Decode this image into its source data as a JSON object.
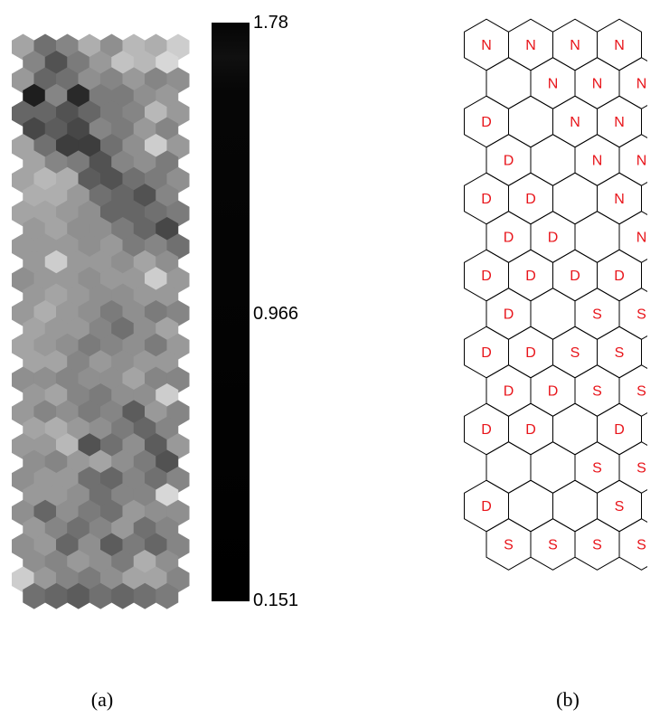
{
  "panel_a": {
    "caption": "(a)",
    "colorbar": {
      "max_label": "1.78",
      "mid_label": "0.966",
      "min_label": "0.151",
      "max": 1.78,
      "min": 0.151
    },
    "grid_rows": [
      [
        0.3,
        0.55,
        0.45,
        0.25,
        0.4,
        0.2,
        0.25,
        0.1
      ],
      [
        0.45,
        0.7,
        0.5,
        0.35,
        0.15,
        0.2,
        0.05
      ],
      [
        0.35,
        0.6,
        0.55,
        0.4,
        0.45,
        0.35,
        0.45,
        0.4
      ],
      [
        0.95,
        0.45,
        0.9,
        0.5,
        0.5,
        0.4,
        0.35
      ],
      [
        0.6,
        0.6,
        0.7,
        0.6,
        0.5,
        0.45,
        0.2,
        0.35
      ],
      [
        0.75,
        0.65,
        0.75,
        0.45,
        0.5,
        0.35,
        0.45
      ],
      [
        0.3,
        0.55,
        0.8,
        0.8,
        0.55,
        0.4,
        0.1,
        0.35
      ],
      [
        0.3,
        0.45,
        0.5,
        0.7,
        0.45,
        0.4,
        0.5
      ],
      [
        0.3,
        0.2,
        0.25,
        0.65,
        0.7,
        0.55,
        0.5,
        0.4
      ],
      [
        0.25,
        0.25,
        0.35,
        0.55,
        0.6,
        0.7,
        0.45
      ],
      [
        0.3,
        0.3,
        0.35,
        0.4,
        0.6,
        0.6,
        0.55,
        0.5
      ],
      [
        0.35,
        0.3,
        0.4,
        0.4,
        0.5,
        0.6,
        0.75
      ],
      [
        0.35,
        0.35,
        0.35,
        0.4,
        0.35,
        0.5,
        0.45,
        0.55
      ],
      [
        0.35,
        0.1,
        0.35,
        0.35,
        0.4,
        0.3,
        0.4
      ],
      [
        0.4,
        0.35,
        0.35,
        0.4,
        0.35,
        0.35,
        0.1,
        0.35
      ],
      [
        0.35,
        0.3,
        0.35,
        0.4,
        0.4,
        0.35,
        0.35
      ],
      [
        0.35,
        0.25,
        0.35,
        0.4,
        0.5,
        0.4,
        0.5,
        0.45
      ],
      [
        0.3,
        0.35,
        0.35,
        0.45,
        0.55,
        0.4,
        0.3
      ],
      [
        0.3,
        0.35,
        0.4,
        0.5,
        0.45,
        0.4,
        0.5,
        0.35
      ],
      [
        0.3,
        0.3,
        0.45,
        0.35,
        0.4,
        0.35,
        0.35
      ],
      [
        0.4,
        0.4,
        0.45,
        0.4,
        0.4,
        0.3,
        0.45,
        0.45
      ],
      [
        0.35,
        0.3,
        0.45,
        0.5,
        0.4,
        0.4,
        0.1
      ],
      [
        0.35,
        0.45,
        0.4,
        0.5,
        0.45,
        0.65,
        0.35,
        0.45
      ],
      [
        0.3,
        0.25,
        0.35,
        0.4,
        0.5,
        0.6,
        0.45
      ],
      [
        0.35,
        0.35,
        0.2,
        0.7,
        0.55,
        0.4,
        0.65,
        0.35
      ],
      [
        0.4,
        0.45,
        0.35,
        0.3,
        0.4,
        0.5,
        0.7
      ],
      [
        0.4,
        0.35,
        0.35,
        0.55,
        0.6,
        0.45,
        0.55,
        0.45
      ],
      [
        0.35,
        0.35,
        0.4,
        0.55,
        0.45,
        0.45,
        0.05
      ],
      [
        0.4,
        0.6,
        0.4,
        0.5,
        0.55,
        0.35,
        0.4,
        0.4
      ],
      [
        0.35,
        0.45,
        0.55,
        0.45,
        0.35,
        0.55,
        0.45
      ],
      [
        0.4,
        0.35,
        0.6,
        0.4,
        0.65,
        0.5,
        0.6,
        0.45
      ],
      [
        0.4,
        0.45,
        0.35,
        0.4,
        0.5,
        0.25,
        0.4
      ],
      [
        0.1,
        0.35,
        0.45,
        0.5,
        0.4,
        0.3,
        0.3,
        0.45
      ],
      [
        0.55,
        0.6,
        0.65,
        0.55,
        0.6,
        0.55,
        0.5
      ]
    ]
  },
  "panel_b": {
    "caption": "(b)",
    "rows": [
      [
        "N",
        "N",
        "N",
        "N"
      ],
      [
        "",
        "N",
        "N",
        "N"
      ],
      [
        "D",
        "",
        "N",
        "N"
      ],
      [
        "D",
        "",
        "N",
        "N"
      ],
      [
        "D",
        "D",
        "",
        "N"
      ],
      [
        "D",
        "D",
        "",
        "N"
      ],
      [
        "D",
        "D",
        "D",
        "D"
      ],
      [
        "D",
        "",
        "S",
        "S"
      ],
      [
        "D",
        "D",
        "S",
        "S"
      ],
      [
        "D",
        "D",
        "S",
        "S"
      ],
      [
        "D",
        "D",
        "",
        "D"
      ],
      [
        "",
        "",
        "S",
        "S"
      ],
      [
        "D",
        "",
        "",
        "S"
      ],
      [
        "S",
        "S",
        "S",
        "S"
      ]
    ]
  }
}
